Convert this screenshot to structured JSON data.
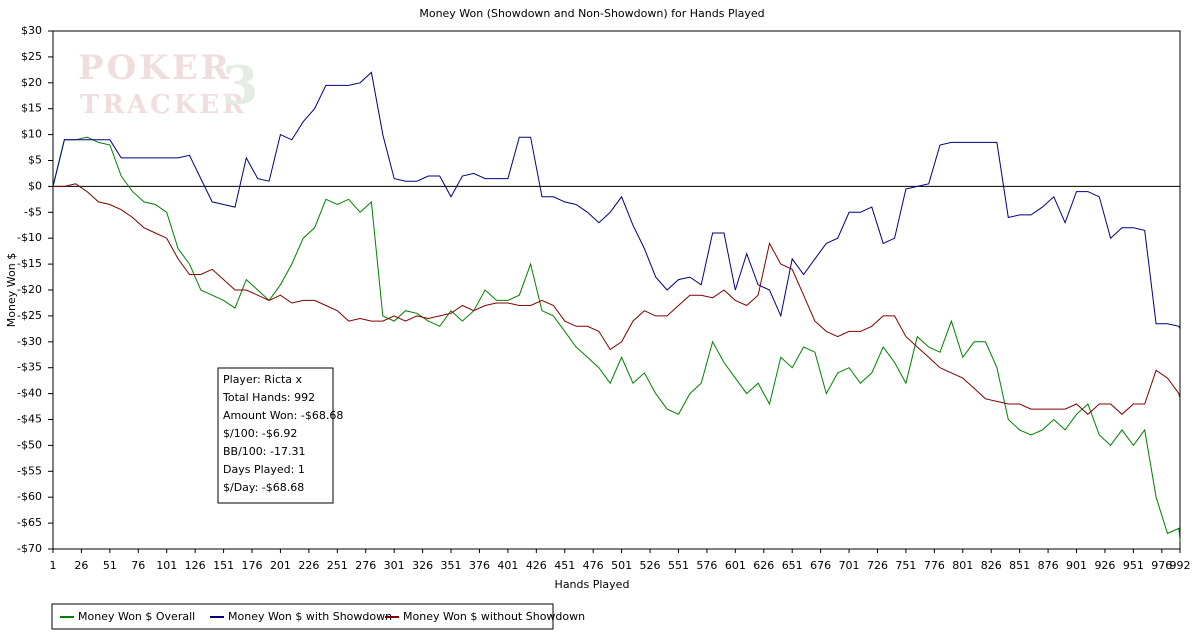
{
  "chart_data": {
    "type": "line",
    "title": "Money Won (Showdown and Non-Showdown) for Hands Played",
    "x_label": "Hands Played",
    "y_label": "Money Won $",
    "watermark": [
      "POKER",
      "TRACKER",
      "3"
    ],
    "info_box": [
      "Player: Ricta x",
      "Total Hands: 992",
      "Amount Won: -$68.68",
      "$/100: -$6.92",
      "BB/100: -17.31",
      "Days Played: 1",
      "$/Day: -$68.68"
    ],
    "xlim": [
      1,
      992
    ],
    "ylim": [
      -70,
      30
    ],
    "xticks": [
      1,
      26,
      51,
      76,
      101,
      126,
      151,
      176,
      201,
      226,
      251,
      276,
      301,
      326,
      351,
      376,
      401,
      426,
      451,
      476,
      501,
      526,
      551,
      576,
      601,
      626,
      651,
      676,
      701,
      726,
      751,
      776,
      801,
      826,
      851,
      876,
      901,
      926,
      951,
      976,
      992
    ],
    "yticks": [
      {
        "value": 30,
        "label": "$30"
      },
      {
        "value": 25,
        "label": "$25"
      },
      {
        "value": 20,
        "label": "$20"
      },
      {
        "value": 15,
        "label": "$15"
      },
      {
        "value": 10,
        "label": "$10"
      },
      {
        "value": 5,
        "label": "$5"
      },
      {
        "value": 0,
        "label": "$0"
      },
      {
        "value": -5,
        "label": "-$5"
      },
      {
        "value": -10,
        "label": "-$10"
      },
      {
        "value": -15,
        "label": "-$15"
      },
      {
        "value": -20,
        "label": "-$20"
      },
      {
        "value": -25,
        "label": "-$25"
      },
      {
        "value": -30,
        "label": "-$30"
      },
      {
        "value": -35,
        "label": "-$35"
      },
      {
        "value": -40,
        "label": "-$40"
      },
      {
        "value": -45,
        "label": "-$45"
      },
      {
        "value": -50,
        "label": "-$50"
      },
      {
        "value": -55,
        "label": "-$55"
      },
      {
        "value": -60,
        "label": "-$60"
      },
      {
        "value": -65,
        "label": "-$65"
      },
      {
        "value": -70,
        "label": "-$70"
      }
    ],
    "x": [
      1,
      11,
      21,
      31,
      41,
      51,
      61,
      71,
      81,
      91,
      101,
      111,
      121,
      131,
      141,
      151,
      161,
      171,
      181,
      191,
      201,
      211,
      221,
      231,
      241,
      251,
      261,
      271,
      281,
      291,
      301,
      311,
      321,
      331,
      341,
      351,
      361,
      371,
      381,
      391,
      401,
      411,
      421,
      431,
      441,
      451,
      461,
      471,
      481,
      491,
      501,
      511,
      521,
      531,
      541,
      551,
      561,
      571,
      581,
      591,
      601,
      611,
      621,
      631,
      641,
      651,
      661,
      671,
      681,
      691,
      701,
      711,
      721,
      731,
      741,
      751,
      761,
      771,
      781,
      791,
      801,
      811,
      821,
      831,
      841,
      851,
      861,
      871,
      881,
      891,
      901,
      911,
      921,
      931,
      941,
      951,
      961,
      971,
      981,
      991,
      992
    ],
    "series": [
      {
        "name": "Money Won $ Overall",
        "color": "#008000",
        "values": [
          0,
          9,
          9,
          9.5,
          8.5,
          8,
          2,
          -1,
          -3,
          -3.5,
          -5,
          -12,
          -15,
          -20,
          -21,
          -22,
          -23.5,
          -18,
          -20,
          -22,
          -19,
          -15,
          -10,
          -8,
          -2.5,
          -3.5,
          -2.5,
          -5,
          -3,
          -25,
          -26,
          -24,
          -24.5,
          -26,
          -27,
          -24,
          -26,
          -24,
          -20,
          -22,
          -22,
          -21,
          -15,
          -24,
          -25,
          -28,
          -31,
          -33,
          -35,
          -38,
          -33,
          -38,
          -36,
          -40,
          -43,
          -44,
          -40,
          -38,
          -30,
          -34,
          -37,
          -40,
          -38,
          -42,
          -33,
          -35,
          -31,
          -32,
          -40,
          -36,
          -35,
          -38,
          -36,
          -31,
          -34,
          -38,
          -29,
          -31,
          -32,
          -26,
          -33,
          -30,
          -30,
          -35,
          -45,
          -47,
          -48,
          -47,
          -45,
          -47,
          -44,
          -42,
          -48,
          -50,
          -47,
          -50,
          -47,
          -60,
          -67,
          -66,
          -68.5
        ]
      },
      {
        "name": "Money Won $ with Showdown",
        "color": "#000080",
        "values": [
          0,
          9,
          9,
          9,
          9,
          9,
          5.5,
          5.5,
          5.5,
          5.5,
          5.5,
          5.5,
          6,
          1.5,
          -3,
          -3.5,
          -4,
          5.5,
          1.5,
          1,
          10,
          9,
          12.5,
          15,
          19.5,
          19.5,
          19.5,
          20,
          22,
          10,
          1.5,
          1,
          1,
          2,
          2,
          -2,
          2,
          2.5,
          1.5,
          1.5,
          1.5,
          9.5,
          9.5,
          -2,
          -2,
          -3,
          -3.5,
          -5,
          -7,
          -5,
          -2,
          -7.5,
          -12,
          -17.5,
          -20,
          -18,
          -17.5,
          -19,
          -9,
          -9,
          -20,
          -13,
          -19,
          -20,
          -25,
          -14,
          -17,
          -14,
          -11,
          -10,
          -5,
          -5,
          -4,
          -11,
          -10,
          -0.5,
          0,
          0.5,
          8,
          8.5,
          8.5,
          8.5,
          8.5,
          8.5,
          -6,
          -5.5,
          -5.5,
          -4,
          -2,
          -7,
          -1,
          -1,
          -2,
          -10,
          -8,
          -8,
          -8.5,
          -26.5,
          -26.5,
          -27,
          -27.5
        ]
      },
      {
        "name": "Money Won $ without Showdown",
        "color": "#800000",
        "values": [
          0,
          0,
          0.5,
          -1,
          -3,
          -3.5,
          -4.5,
          -6,
          -8,
          -9,
          -10,
          -14,
          -17,
          -17,
          -16,
          -18,
          -20,
          -20,
          -21,
          -22,
          -21,
          -22.5,
          -22,
          -22,
          -23,
          -24,
          -26,
          -25.5,
          -26,
          -26,
          -25,
          -26,
          -25,
          -25.5,
          -25,
          -24.5,
          -23,
          -24,
          -23,
          -22.5,
          -22.5,
          -23,
          -23,
          -22,
          -23,
          -26,
          -27,
          -27,
          -28,
          -31.5,
          -30,
          -26,
          -24,
          -25,
          -25,
          -23,
          -21,
          -21,
          -21.5,
          -20,
          -22,
          -23,
          -21,
          -11,
          -15,
          -16,
          -21,
          -26,
          -28,
          -29,
          -28,
          -28,
          -27,
          -25,
          -25,
          -29,
          -31,
          -33,
          -35,
          -36,
          -37,
          -39,
          -41,
          -41.5,
          -42,
          -42,
          -43,
          -43,
          -43,
          -43,
          -42,
          -44,
          -42,
          -42,
          -44,
          -42,
          -42,
          -35.5,
          -37,
          -40,
          -41
        ]
      }
    ],
    "grid": false
  }
}
